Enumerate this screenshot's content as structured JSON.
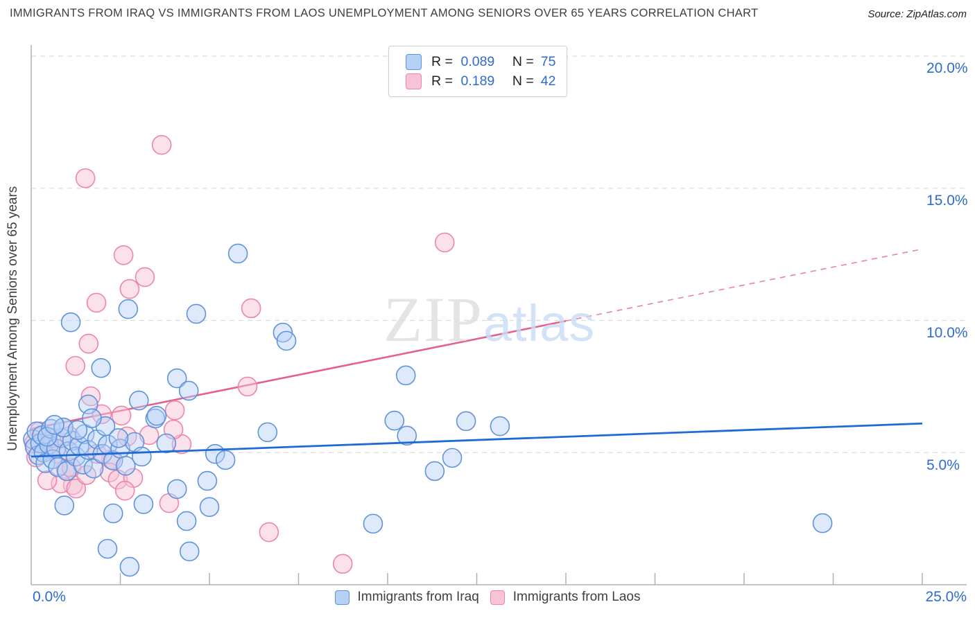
{
  "header": {
    "title": "IMMIGRANTS FROM IRAQ VS IMMIGRANTS FROM LAOS UNEMPLOYMENT AMONG SENIORS OVER 65 YEARS CORRELATION CHART",
    "source": "Source: ZipAtlas.com"
  },
  "stats_box": {
    "rows": [
      {
        "series": "iraq",
        "r_label": "R =",
        "r_value": "0.089",
        "n_label": "N =",
        "n_value": "75"
      },
      {
        "series": "laos",
        "r_label": "R =",
        "r_value": "0.189",
        "n_label": "N =",
        "n_value": "42"
      }
    ]
  },
  "y_axis": {
    "label": "Unemployment Among Seniors over 65 years",
    "tick_labels": [
      "20.0%",
      "15.0%",
      "10.0%",
      "5.0%"
    ]
  },
  "x_axis": {
    "min_label": "0.0%",
    "max_label": "25.0%"
  },
  "watermark": {
    "zip": "ZIP",
    "atlas": "atlas"
  },
  "bottom_legend": [
    {
      "label": "Immigrants from Iraq",
      "series": "iraq"
    },
    {
      "label": "Immigrants from Laos",
      "series": "laos"
    }
  ],
  "colors": {
    "iraq_fill": "#b5d1f6",
    "iraq_stroke": "#5e92dc",
    "iraq_trend": "#1f6bd6",
    "laos_fill": "#f8c3d6",
    "laos_stroke": "#ee84ac",
    "laos_trend": "#e4618d",
    "grid": "#dcdcdc",
    "axis": "#b0b0b0",
    "tick_label_blue": "#2e6bd0"
  },
  "chart_data": {
    "type": "scatter",
    "title": "Immigrants from Iraq vs Immigrants from Laos Unemployment Among Seniors over 65 years",
    "xlabel_range": [
      0,
      25
    ],
    "ylabel": "Unemployment Among Seniors over 65 years",
    "x_axis_unit": "%",
    "y_axis_unit": "%",
    "xlim": [
      0,
      25
    ],
    "ylim": [
      0,
      21
    ],
    "y_gridlines": [
      20,
      15,
      10,
      5
    ],
    "x_ticks": [
      2.5,
      5,
      7.5,
      10,
      12.5,
      15,
      17.5,
      20,
      22.5,
      25
    ],
    "legend_position": "bottom",
    "grid": "dashed-horizontal",
    "series": [
      {
        "name": "Immigrants from Iraq",
        "R": 0.089,
        "N": 75,
        "points": [
          [
            0.05,
            5.5
          ],
          [
            0.1,
            5.2
          ],
          [
            0.15,
            5.8
          ],
          [
            0.2,
            4.9
          ],
          [
            0.25,
            5.35
          ],
          [
            0.3,
            5.65
          ],
          [
            0.35,
            5.0
          ],
          [
            0.4,
            4.6
          ],
          [
            0.5,
            5.3
          ],
          [
            0.55,
            5.9
          ],
          [
            0.6,
            4.75
          ],
          [
            0.7,
            5.15
          ],
          [
            0.75,
            4.45
          ],
          [
            0.85,
            5.55
          ],
          [
            0.9,
            5.95
          ],
          [
            1.0,
            4.3
          ],
          [
            1.05,
            5.05
          ],
          [
            1.15,
            5.45
          ],
          [
            1.25,
            4.85
          ],
          [
            1.35,
            5.25
          ],
          [
            1.45,
            4.55
          ],
          [
            1.5,
            5.7
          ],
          [
            1.6,
            5.1
          ],
          [
            1.75,
            4.4
          ],
          [
            1.85,
            5.5
          ],
          [
            2.0,
            4.95
          ],
          [
            2.15,
            5.3
          ],
          [
            2.3,
            4.7
          ],
          [
            2.5,
            5.15
          ],
          [
            2.65,
            4.5
          ],
          [
            2.9,
            5.4
          ],
          [
            3.1,
            4.85
          ],
          [
            0.93,
            3.0
          ],
          [
            2.3,
            2.7
          ],
          [
            3.15,
            3.05
          ],
          [
            2.14,
            1.36
          ],
          [
            4.44,
            1.26
          ],
          [
            4.36,
            2.41
          ],
          [
            5.0,
            2.94
          ],
          [
            4.09,
            3.62
          ],
          [
            4.94,
            3.93
          ],
          [
            9.59,
            2.31
          ],
          [
            22.2,
            2.33
          ],
          [
            2.72,
            10.43
          ],
          [
            1.11,
            9.93
          ],
          [
            5.8,
            12.53
          ],
          [
            4.63,
            10.25
          ],
          [
            7.06,
            9.54
          ],
          [
            7.16,
            9.23
          ],
          [
            1.96,
            8.2
          ],
          [
            10.51,
            7.92
          ],
          [
            4.09,
            7.81
          ],
          [
            4.42,
            7.34
          ],
          [
            1.6,
            6.82
          ],
          [
            3.02,
            6.97
          ],
          [
            3.48,
            6.29
          ],
          [
            0.91,
            5.95
          ],
          [
            6.63,
            5.77
          ],
          [
            10.19,
            6.21
          ],
          [
            10.54,
            5.64
          ],
          [
            12.2,
            6.19
          ],
          [
            13.15,
            6.0
          ],
          [
            11.81,
            4.8
          ],
          [
            11.32,
            4.3
          ],
          [
            5.16,
            4.95
          ],
          [
            5.45,
            4.72
          ],
          [
            3.79,
            5.35
          ],
          [
            3.52,
            6.39
          ],
          [
            2.76,
            0.68
          ],
          [
            2.08,
            6.0
          ],
          [
            1.7,
            6.3
          ],
          [
            0.45,
            5.6
          ],
          [
            0.65,
            6.05
          ],
          [
            1.3,
            5.85
          ],
          [
            2.45,
            5.55
          ]
        ],
        "trend": {
          "x1": 0,
          "y1": 4.85,
          "x2": 25,
          "y2": 6.1,
          "style": "solid"
        }
      },
      {
        "name": "Immigrants from Laos",
        "R": 0.189,
        "N": 42,
        "points": [
          [
            3.66,
            16.64
          ],
          [
            1.52,
            15.38
          ],
          [
            2.59,
            12.47
          ],
          [
            3.19,
            11.64
          ],
          [
            2.76,
            11.19
          ],
          [
            1.83,
            10.67
          ],
          [
            11.6,
            12.95
          ],
          [
            6.17,
            10.46
          ],
          [
            1.61,
            9.12
          ],
          [
            1.24,
            8.28
          ],
          [
            1.67,
            7.13
          ],
          [
            6.07,
            7.5
          ],
          [
            1.98,
            6.45
          ],
          [
            2.53,
            6.4
          ],
          [
            4.03,
            6.6
          ],
          [
            4.22,
            5.32
          ],
          [
            3.99,
            5.87
          ],
          [
            3.31,
            5.66
          ],
          [
            2.69,
            5.61
          ],
          [
            0.23,
            5.8
          ],
          [
            0.53,
            5.14
          ],
          [
            0.14,
            4.82
          ],
          [
            0.74,
            4.95
          ],
          [
            0.97,
            4.38
          ],
          [
            1.13,
            4.43
          ],
          [
            2.24,
            4.74
          ],
          [
            1.85,
            4.95
          ],
          [
            1.17,
            3.77
          ],
          [
            2.2,
            4.25
          ],
          [
            2.43,
            3.98
          ],
          [
            0.83,
            3.83
          ],
          [
            1.26,
            3.64
          ],
          [
            2.86,
            4.04
          ],
          [
            2.63,
            3.56
          ],
          [
            0.62,
            5.55
          ],
          [
            1.07,
            5.62
          ],
          [
            3.87,
            3.09
          ],
          [
            1.55,
            4.15
          ],
          [
            6.67,
            1.99
          ],
          [
            8.74,
            0.79
          ],
          [
            0.08,
            5.35
          ],
          [
            0.45,
            3.95
          ]
        ],
        "trend_solid": {
          "x1": 0,
          "y1": 5.9,
          "x2": 15,
          "y2": 9.98
        },
        "trend_dashed": {
          "x1": 15,
          "y1": 9.98,
          "x2": 25,
          "y2": 12.7
        }
      }
    ]
  }
}
